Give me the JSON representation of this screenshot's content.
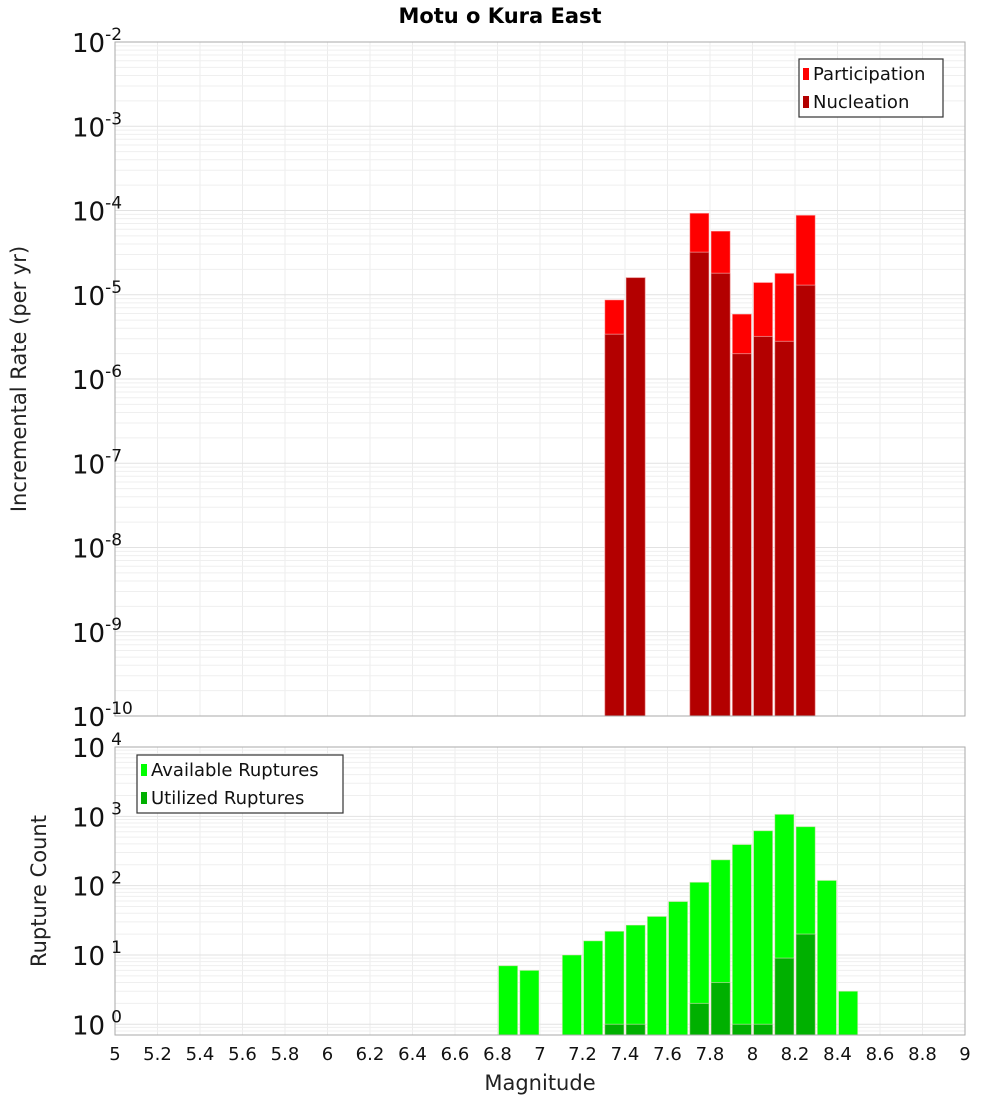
{
  "chart_data": [
    {
      "type": "bar",
      "title": "Motu o Kura East",
      "xlabel": "Magnitude",
      "ylabel": "Incremental Rate (per yr)",
      "yscale": "log",
      "xlim": [
        5,
        9
      ],
      "ylim": [
        1e-10,
        0.01
      ],
      "bin_width": 0.1,
      "legend_position": "top-right",
      "x": [
        7.35,
        7.45,
        7.75,
        7.85,
        7.95,
        8.05,
        8.15,
        8.25
      ],
      "series": [
        {
          "name": "Participation",
          "color": "#ff0000",
          "values": [
            8.7e-06,
            1.6e-05,
            9.3e-05,
            5.7e-05,
            5.9e-06,
            1.4e-05,
            1.8e-05,
            8.8e-05
          ]
        },
        {
          "name": "Nucleation",
          "color": "#b30000",
          "values": [
            3.4e-06,
            1.6e-05,
            3.2e-05,
            1.8e-05,
            2e-06,
            3.2e-06,
            2.8e-06,
            1.3e-05
          ]
        }
      ],
      "ytick_exponents": [
        "-10",
        "-9",
        "-8",
        "-7",
        "-6",
        "-5",
        "-4",
        "-3",
        "-2"
      ]
    },
    {
      "type": "bar",
      "xlabel": "Magnitude",
      "ylabel": "Rupture Count",
      "yscale": "log",
      "xlim": [
        5,
        9
      ],
      "ylim": [
        0.7,
        10000.0
      ],
      "bin_width": 0.1,
      "legend_position": "top-left",
      "x": [
        6.85,
        6.95,
        7.15,
        7.25,
        7.35,
        7.45,
        7.55,
        7.65,
        7.75,
        7.85,
        7.95,
        8.05,
        8.15,
        8.25,
        8.35,
        8.45
      ],
      "series": [
        {
          "name": "Available Ruptures",
          "color": "#00ff00",
          "values": [
            7,
            6,
            10,
            16,
            22,
            27,
            36,
            59,
            112,
            236,
            392,
            620,
            1070,
            710,
            119,
            3
          ]
        },
        {
          "name": "Utilized Ruptures",
          "color": "#00b000",
          "values": [
            0,
            0,
            0,
            0,
            1,
            1,
            0,
            0,
            2,
            4,
            1,
            1,
            9,
            20,
            0,
            0
          ]
        }
      ],
      "ytick_exponents": [
        "0",
        "1",
        "2",
        "3",
        "4"
      ]
    }
  ],
  "xticks": [
    "5",
    "5.2",
    "5.4",
    "5.6",
    "5.8",
    "6",
    "6.2",
    "6.4",
    "6.6",
    "6.8",
    "7",
    "7.2",
    "7.4",
    "7.6",
    "7.8",
    "8",
    "8.2",
    "8.4",
    "8.6",
    "8.8",
    "9"
  ],
  "ytick_base": "10"
}
